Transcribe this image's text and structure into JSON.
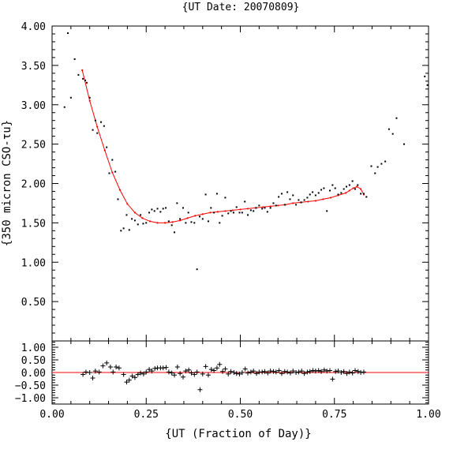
{
  "chart_data": [
    {
      "type": "scatter",
      "title": "{UT Date: 20070809}",
      "ylabel": "{350 micron CSO-τu}",
      "xlabel": "",
      "xlim": [
        0.0,
        1.0
      ],
      "ylim": [
        0.0,
        4.0
      ],
      "yticks": [
        {
          "value": 0.5,
          "label": "0.50"
        },
        {
          "value": 1.0,
          "label": "1.00"
        },
        {
          "value": 1.5,
          "label": "1.50"
        },
        {
          "value": 2.0,
          "label": "2.00"
        },
        {
          "value": 2.5,
          "label": "2.50"
        },
        {
          "value": 3.0,
          "label": "3.00"
        },
        {
          "value": 3.5,
          "label": "3.50"
        },
        {
          "value": 4.0,
          "label": "4.00"
        }
      ],
      "series": [
        {
          "marker": "dot",
          "color": "#000000",
          "x": [
            0.033,
            0.042,
            0.05,
            0.06,
            0.07,
            0.082,
            0.088,
            0.092,
            0.1,
            0.108,
            0.115,
            0.12,
            0.13,
            0.138,
            0.145,
            0.152,
            0.16,
            0.168,
            0.175,
            0.183,
            0.19,
            0.198,
            0.205,
            0.212,
            0.22,
            0.228,
            0.235,
            0.242,
            0.25,
            0.258,
            0.265,
            0.272,
            0.28,
            0.288,
            0.295,
            0.302,
            0.31,
            0.318,
            0.325,
            0.332,
            0.34,
            0.348,
            0.355,
            0.362,
            0.37,
            0.378,
            0.385,
            0.392,
            0.4,
            0.408,
            0.415,
            0.422,
            0.43,
            0.438,
            0.445,
            0.452,
            0.46,
            0.468,
            0.475,
            0.482,
            0.49,
            0.498,
            0.505,
            0.512,
            0.52,
            0.528,
            0.535,
            0.542,
            0.55,
            0.558,
            0.565,
            0.572,
            0.58,
            0.588,
            0.595,
            0.602,
            0.61,
            0.618,
            0.625,
            0.632,
            0.64,
            0.648,
            0.655,
            0.662,
            0.67,
            0.678,
            0.685,
            0.692,
            0.7,
            0.708,
            0.715,
            0.722,
            0.73,
            0.738,
            0.745,
            0.752,
            0.76,
            0.768,
            0.775,
            0.782,
            0.79,
            0.798,
            0.805,
            0.812,
            0.82,
            0.828,
            0.835,
            0.848,
            0.858,
            0.865,
            0.875,
            0.885,
            0.895,
            0.905,
            0.915,
            0.935,
            0.99,
            0.997
          ],
          "y": [
            2.97,
            3.91,
            3.09,
            3.58,
            3.38,
            3.33,
            3.31,
            3.28,
            3.09,
            2.68,
            2.8,
            2.64,
            2.78,
            2.73,
            2.46,
            2.13,
            2.3,
            2.15,
            1.8,
            1.4,
            1.43,
            1.6,
            1.41,
            1.55,
            1.53,
            1.48,
            1.6,
            1.49,
            1.5,
            1.63,
            1.67,
            1.65,
            1.68,
            1.64,
            1.68,
            1.69,
            1.52,
            1.47,
            1.38,
            1.75,
            1.55,
            1.69,
            1.5,
            1.63,
            1.51,
            1.5,
            0.91,
            1.58,
            1.55,
            1.86,
            1.52,
            1.69,
            1.63,
            1.87,
            1.5,
            1.59,
            1.82,
            1.62,
            1.65,
            1.63,
            1.7,
            1.63,
            1.63,
            1.77,
            1.6,
            1.66,
            1.65,
            1.69,
            1.72,
            1.68,
            1.69,
            1.64,
            1.69,
            1.75,
            1.72,
            1.83,
            1.87,
            1.73,
            1.89,
            1.8,
            1.85,
            1.73,
            1.79,
            1.76,
            1.79,
            1.82,
            1.86,
            1.89,
            1.85,
            1.88,
            1.92,
            1.94,
            1.65,
            1.91,
            1.98,
            1.94,
            1.86,
            1.88,
            1.93,
            1.96,
            1.98,
            2.03,
            1.93,
            1.98,
            1.87,
            1.87,
            1.83,
            2.22,
            2.13,
            2.21,
            2.25,
            2.28,
            2.69,
            2.63,
            2.83,
            2.5,
            3.36,
            3.25
          ]
        },
        {
          "marker": "line",
          "color": "#ff0000",
          "x": [
            0.08,
            0.1,
            0.12,
            0.14,
            0.16,
            0.18,
            0.2,
            0.22,
            0.24,
            0.26,
            0.28,
            0.3,
            0.32,
            0.34,
            0.36,
            0.38,
            0.4,
            0.42,
            0.44,
            0.46,
            0.48,
            0.5,
            0.52,
            0.54,
            0.56,
            0.58,
            0.6,
            0.62,
            0.64,
            0.66,
            0.68,
            0.7,
            0.72,
            0.74,
            0.76,
            0.78,
            0.79,
            0.8,
            0.81,
            0.82,
            0.828
          ],
          "y": [
            3.44,
            3.05,
            2.72,
            2.42,
            2.14,
            1.92,
            1.74,
            1.63,
            1.56,
            1.52,
            1.5,
            1.5,
            1.51,
            1.53,
            1.56,
            1.59,
            1.61,
            1.63,
            1.64,
            1.65,
            1.66,
            1.67,
            1.68,
            1.69,
            1.7,
            1.71,
            1.72,
            1.73,
            1.75,
            1.76,
            1.77,
            1.78,
            1.8,
            1.82,
            1.85,
            1.88,
            1.91,
            1.94,
            1.96,
            1.93,
            1.86
          ]
        }
      ]
    },
    {
      "type": "scatter",
      "title": "",
      "xlabel": "{UT (Fraction of Day)}",
      "ylabel": "",
      "xlim": [
        0.0,
        1.0
      ],
      "ylim": [
        -1.25,
        1.25
      ],
      "xticks": [
        {
          "value": 0.0,
          "label": "0.00"
        },
        {
          "value": 0.25,
          "label": "0.25"
        },
        {
          "value": 0.5,
          "label": "0.50"
        },
        {
          "value": 0.75,
          "label": "0.75"
        },
        {
          "value": 1.0,
          "label": "1.00"
        }
      ],
      "yticks": [
        {
          "value": -1.0,
          "label": "−1.00"
        },
        {
          "value": -0.5,
          "label": "−0.50"
        },
        {
          "value": 0.0,
          "label": "0.00"
        },
        {
          "value": 0.5,
          "label": "0.50"
        },
        {
          "value": 1.0,
          "label": "1.00"
        }
      ],
      "reference_line": {
        "y": 0.0,
        "color": "#ff0000"
      },
      "series": [
        {
          "marker": "plus",
          "color": "#000000",
          "x": [
            0.082,
            0.09,
            0.1,
            0.108,
            0.115,
            0.125,
            0.135,
            0.145,
            0.155,
            0.162,
            0.17,
            0.178,
            0.19,
            0.198,
            0.205,
            0.213,
            0.22,
            0.228,
            0.235,
            0.243,
            0.25,
            0.258,
            0.265,
            0.273,
            0.28,
            0.288,
            0.295,
            0.303,
            0.31,
            0.318,
            0.325,
            0.333,
            0.34,
            0.348,
            0.355,
            0.363,
            0.37,
            0.378,
            0.385,
            0.393,
            0.4,
            0.408,
            0.415,
            0.423,
            0.43,
            0.438,
            0.445,
            0.453,
            0.46,
            0.468,
            0.475,
            0.483,
            0.49,
            0.498,
            0.505,
            0.513,
            0.52,
            0.528,
            0.535,
            0.543,
            0.55,
            0.558,
            0.565,
            0.573,
            0.58,
            0.588,
            0.595,
            0.603,
            0.61,
            0.618,
            0.625,
            0.633,
            0.64,
            0.648,
            0.655,
            0.663,
            0.67,
            0.678,
            0.685,
            0.693,
            0.7,
            0.708,
            0.715,
            0.723,
            0.73,
            0.738,
            0.745,
            0.753,
            0.76,
            0.768,
            0.775,
            0.783,
            0.79,
            0.798,
            0.805,
            0.813,
            0.82,
            0.828
          ],
          "y": [
            -0.08,
            0.02,
            0.0,
            -0.22,
            0.06,
            0.02,
            0.26,
            0.38,
            0.22,
            0.02,
            0.22,
            0.18,
            -0.08,
            -0.38,
            -0.3,
            -0.14,
            -0.2,
            -0.08,
            -0.02,
            -0.06,
            0.02,
            0.12,
            0.06,
            0.16,
            0.18,
            0.18,
            0.18,
            0.2,
            0.02,
            -0.02,
            -0.1,
            0.22,
            -0.04,
            -0.18,
            0.06,
            0.1,
            -0.02,
            -0.08,
            0.02,
            -0.68,
            -0.06,
            0.24,
            -0.1,
            0.12,
            0.08,
            0.18,
            0.32,
            0.04,
            0.14,
            -0.06,
            0.04,
            0.0,
            -0.04,
            -0.06,
            0.0,
            0.14,
            -0.02,
            0.02,
            0.06,
            -0.04,
            0.02,
            0.02,
            0.04,
            -0.02,
            0.06,
            0.04,
            0.02,
            0.08,
            -0.04,
            0.04,
            0.02,
            -0.02,
            0.06,
            0.0,
            0.02,
            0.06,
            -0.04,
            0.02,
            0.04,
            0.08,
            0.06,
            0.08,
            0.04,
            0.1,
            0.06,
            0.08,
            -0.26,
            0.04,
            0.06,
            0.0,
            0.04,
            -0.04,
            0.02,
            -0.02,
            0.08,
            0.04,
            0.0,
            0.02
          ]
        }
      ]
    }
  ]
}
